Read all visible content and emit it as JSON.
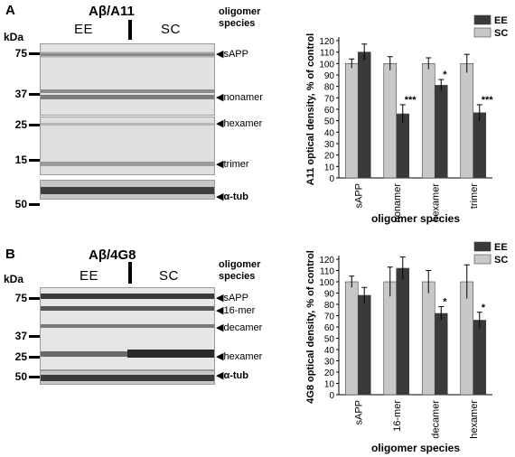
{
  "panel_a": {
    "letter": "A",
    "title": "Aβ/A11",
    "kda_label": "kDa",
    "oligomer_header": "oligomer species",
    "groups": [
      "EE",
      "SC"
    ],
    "mw_markers": [
      "75",
      "37",
      "25",
      "15",
      "50"
    ],
    "band_labels": [
      "sAPP",
      "nonamer",
      "hexamer",
      "trimer",
      "α-tub"
    ]
  },
  "panel_b": {
    "letter": "B",
    "title": "Aβ/4G8",
    "kda_label": "kDa",
    "oligomer_header": "oligomer species",
    "groups": [
      "EE",
      "SC"
    ],
    "mw_markers": [
      "75",
      "37",
      "25",
      "50"
    ],
    "band_labels": [
      "sAPP",
      "16-mer",
      "decamer",
      "hexamer",
      "α-tub"
    ]
  },
  "colors": {
    "EE": "#3a3a3a",
    "SC": "#c8c8c8"
  },
  "chart_data": [
    {
      "type": "bar",
      "ylabel": "A11 optical density, % of control",
      "xlabel": "oligomer species",
      "ylim": [
        0,
        120
      ],
      "yticks": [
        "0",
        "10",
        "20",
        "30",
        "40",
        "50",
        "60",
        "70",
        "80",
        "90",
        "100",
        "110",
        "120"
      ],
      "categories": [
        "sAPP",
        "nonamer",
        "hexamer",
        "trimer"
      ],
      "series": [
        {
          "name": "SC",
          "values": [
            100,
            100,
            100,
            100
          ],
          "errors": [
            4,
            6,
            5,
            8
          ]
        },
        {
          "name": "EE",
          "values": [
            110,
            56,
            81,
            57
          ],
          "errors": [
            7,
            8,
            5,
            7
          ]
        }
      ],
      "annotations": [
        "",
        "***",
        "*",
        "***"
      ],
      "legend": [
        "EE",
        "SC"
      ],
      "legend_position": "top-right"
    },
    {
      "type": "bar",
      "ylabel": "4G8 optical density, % of control",
      "xlabel": "oligomer species",
      "ylim": [
        0,
        120
      ],
      "yticks": [
        "0",
        "10",
        "20",
        "30",
        "40",
        "50",
        "60",
        "70",
        "80",
        "90",
        "100",
        "110",
        "120"
      ],
      "categories": [
        "sAPP",
        "16-mer",
        "decamer",
        "hexamer"
      ],
      "series": [
        {
          "name": "SC",
          "values": [
            100,
            100,
            100,
            100
          ],
          "errors": [
            5,
            13,
            10,
            15
          ]
        },
        {
          "name": "EE",
          "values": [
            88,
            112,
            72,
            66
          ],
          "errors": [
            7,
            10,
            6,
            7
          ]
        }
      ],
      "annotations": [
        "",
        "",
        "*",
        "*"
      ],
      "legend": [
        "EE",
        "SC"
      ],
      "legend_position": "top-right"
    }
  ]
}
